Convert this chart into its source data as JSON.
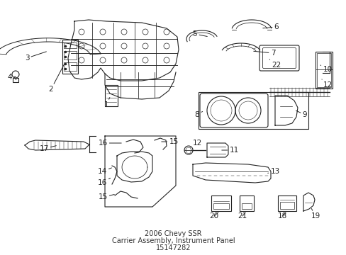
{
  "bg_color": "#ffffff",
  "line_color": "#222222",
  "label_color": "#000000",
  "fig_width": 4.89,
  "fig_height": 3.6,
  "dpi": 100,
  "label_fs": 7.5,
  "small_label_fs": 6.5
}
